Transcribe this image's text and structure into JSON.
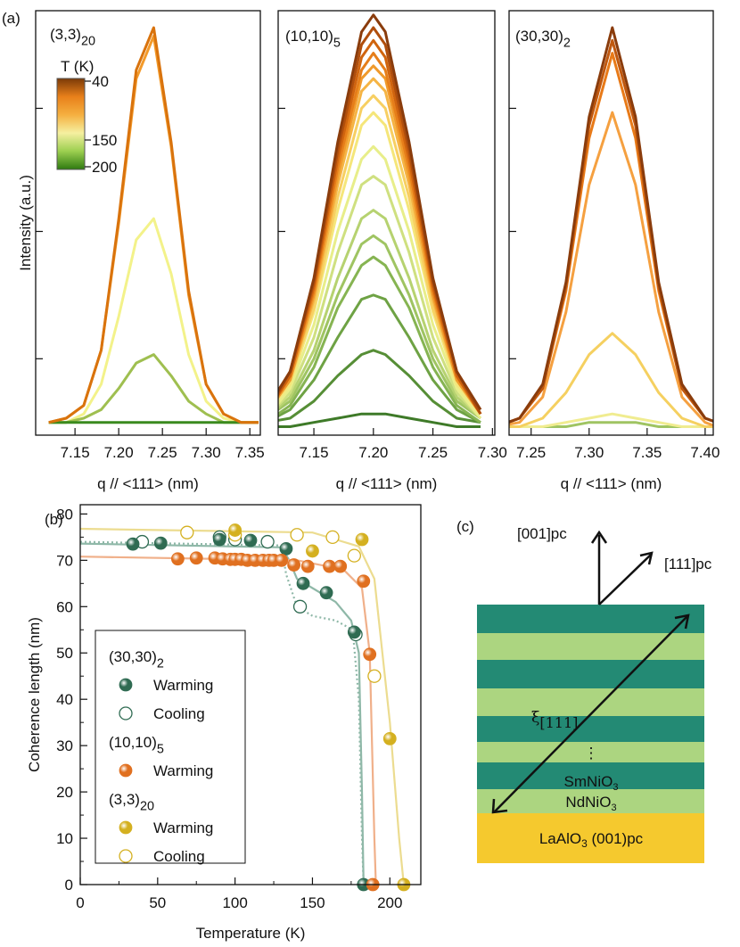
{
  "panel_labels": [
    "(a)",
    "(b)",
    "(c)"
  ],
  "chart_data": [
    {
      "type": "line",
      "label": {
        "text": "(3,3)",
        "sub": "20"
      },
      "ylabel": "Intensity (a.u.)",
      "xlabel": "q // <111> (nm)",
      "x": [
        7.12,
        7.14,
        7.16,
        7.18,
        7.2,
        7.22,
        7.24,
        7.26,
        7.28,
        7.3,
        7.32,
        7.34,
        7.36
      ],
      "xlim": [
        7.105,
        7.362
      ],
      "xticks": [
        7.15,
        {
          "value": 7.2,
          "label": "7.20"
        },
        7.25,
        {
          "value": 7.3,
          "label": "7.30"
        },
        7.35
      ],
      "ylim": [
        0,
        100
      ],
      "yticks": [
        18,
        48,
        77
      ],
      "series": [
        {
          "color": "#f3f28a",
          "values": [
            3,
            3,
            5,
            12,
            28,
            46,
            51,
            38,
            19,
            8,
            4,
            3,
            3
          ]
        },
        {
          "color": "#9fbf50",
          "values": [
            3,
            3,
            4,
            6,
            11,
            17,
            19,
            14,
            8,
            5,
            3,
            3,
            3
          ]
        },
        {
          "color": "#3a8a1e",
          "values": [
            3,
            3,
            3,
            3,
            3,
            3,
            3,
            3,
            3,
            3,
            3,
            3,
            3
          ]
        },
        {
          "color": "#f39a2a",
          "values": [
            3,
            4,
            7,
            20,
            50,
            84,
            94,
            68,
            33,
            12,
            5,
            3,
            3
          ]
        },
        {
          "color": "#d9730d",
          "values": [
            3,
            4,
            7,
            20,
            51,
            86,
            96,
            69,
            34,
            12,
            5,
            3,
            3
          ]
        }
      ],
      "colorbar": {
        "title": "T (K)",
        "lim": [
          35,
          205
        ],
        "ticks": [
          40,
          150,
          200
        ],
        "colors": [
          "#7a3a08",
          "#e8801a",
          "#f5b040",
          "#f5f0a0",
          "#9ccf50",
          "#2e7a10"
        ]
      }
    },
    {
      "type": "line",
      "label": {
        "text": "(10,10)",
        "sub": "5"
      },
      "xlabel": "q // <111> (nm)",
      "x": [
        7.11,
        7.13,
        7.15,
        7.17,
        7.19,
        7.2,
        7.21,
        7.23,
        7.25,
        7.27,
        7.29
      ],
      "xlim": [
        7.12,
        7.302
      ],
      "xticks": [
        7.15,
        {
          "value": 7.2,
          "label": "7.20"
        },
        7.25,
        {
          "value": 7.3,
          "label": "7.30"
        }
      ],
      "ylim": [
        0,
        100
      ],
      "yticks": [
        18,
        48,
        77
      ],
      "series": [
        {
          "color": "#3e7a28",
          "values": [
            2,
            2,
            3,
            4,
            5,
            5,
            5,
            4,
            3,
            2,
            2
          ]
        },
        {
          "color": "#568e36",
          "values": [
            3,
            4,
            8,
            14,
            19,
            20,
            19,
            14,
            8,
            4,
            3
          ]
        },
        {
          "color": "#6ea244",
          "values": [
            3,
            6,
            13,
            23,
            32,
            33,
            32,
            23,
            13,
            6,
            3
          ]
        },
        {
          "color": "#86b452",
          "values": [
            3,
            7,
            16,
            30,
            40,
            42,
            40,
            30,
            16,
            7,
            3
          ]
        },
        {
          "color": "#9fc462",
          "values": [
            4,
            8,
            18,
            33,
            45,
            47,
            45,
            33,
            18,
            8,
            4
          ]
        },
        {
          "color": "#b6d270",
          "values": [
            4,
            9,
            20,
            37,
            51,
            53,
            51,
            37,
            20,
            9,
            4
          ]
        },
        {
          "color": "#cfe080",
          "values": [
            4,
            10,
            23,
            43,
            59,
            61,
            59,
            43,
            23,
            10,
            4
          ]
        },
        {
          "color": "#e8ee8a",
          "values": [
            4,
            11,
            26,
            48,
            65,
            68,
            65,
            48,
            26,
            11,
            4
          ]
        },
        {
          "color": "#f5e67a",
          "values": [
            5,
            12,
            29,
            53,
            73,
            76,
            73,
            53,
            29,
            12,
            5
          ]
        },
        {
          "color": "#f7cf62",
          "values": [
            5,
            13,
            30,
            56,
            77,
            80,
            77,
            56,
            30,
            13,
            5
          ]
        },
        {
          "color": "#f5b444",
          "values": [
            5,
            13,
            32,
            59,
            81,
            84,
            81,
            59,
            32,
            13,
            5
          ]
        },
        {
          "color": "#f09a2c",
          "values": [
            5,
            13,
            33,
            61,
            84,
            87,
            84,
            61,
            33,
            13,
            5
          ]
        },
        {
          "color": "#e67e1a",
          "values": [
            5,
            14,
            34,
            63,
            86,
            90,
            86,
            63,
            34,
            14,
            5
          ]
        },
        {
          "color": "#d0640e",
          "values": [
            5,
            14,
            35,
            65,
            89,
            93,
            89,
            65,
            35,
            14,
            5
          ]
        },
        {
          "color": "#b04e0c",
          "values": [
            5,
            15,
            36,
            67,
            92,
            96,
            92,
            67,
            36,
            15,
            5
          ]
        },
        {
          "color": "#8a3c0c",
          "values": [
            6,
            15,
            37,
            69,
            95,
            99,
            95,
            69,
            37,
            15,
            6
          ]
        }
      ]
    },
    {
      "type": "line",
      "label": {
        "text": "(30,30)",
        "sub": "2"
      },
      "xlabel": "q // <111> (nm)",
      "x": [
        7.22,
        7.24,
        7.26,
        7.28,
        7.3,
        7.32,
        7.34,
        7.36,
        7.38,
        7.4,
        7.41
      ],
      "xlim": [
        7.231,
        7.407
      ],
      "xticks": [
        7.25,
        {
          "value": 7.3,
          "label": "7.30"
        },
        7.35,
        {
          "value": 7.4,
          "label": "7.40"
        }
      ],
      "ylim": [
        0,
        100
      ],
      "yticks": [
        18,
        48,
        77
      ],
      "series": [
        {
          "color": "#9fc462",
          "values": [
            2,
            2,
            2,
            2,
            3,
            3,
            3,
            2,
            2,
            2,
            2
          ]
        },
        {
          "color": "#f0ec90",
          "values": [
            2,
            2,
            2,
            3,
            4,
            5,
            4,
            3,
            2,
            2,
            2
          ]
        },
        {
          "color": "#f5d060",
          "values": [
            2,
            2,
            4,
            10,
            19,
            24,
            19,
            10,
            4,
            2,
            2
          ]
        },
        {
          "color": "#f5a040",
          "values": [
            2,
            3,
            9,
            29,
            59,
            76,
            59,
            29,
            9,
            3,
            2
          ]
        },
        {
          "color": "#e87a18",
          "values": [
            2,
            4,
            11,
            34,
            70,
            90,
            70,
            34,
            11,
            4,
            3
          ]
        },
        {
          "color": "#c0580e",
          "values": [
            2,
            4,
            11,
            35,
            73,
            93,
            73,
            35,
            11,
            4,
            3
          ]
        },
        {
          "color": "#8a3c0c",
          "values": [
            2,
            4,
            12,
            36,
            75,
            96,
            75,
            36,
            12,
            4,
            3
          ]
        }
      ]
    },
    {
      "type": "scatter",
      "xlabel": "Temperature (K)",
      "ylabel": "Coherence length (nm)",
      "xlim": [
        0,
        220
      ],
      "xticks": [
        0,
        50,
        100,
        150,
        200
      ],
      "xminor": [
        25,
        75,
        125,
        175
      ],
      "ylim": [
        0,
        82
      ],
      "yticks": [
        0,
        10,
        20,
        30,
        40,
        50,
        60,
        70,
        80
      ],
      "yminor": [
        5,
        15,
        25,
        35,
        45,
        55,
        65,
        75
      ],
      "groups": [
        {
          "text": "(30,30)",
          "sub": "2"
        },
        {
          "text": "(10,10)",
          "sub": "5"
        },
        {
          "text": "(3,3)",
          "sub": "20"
        }
      ],
      "fits": [
        {
          "color": "#8fb8a8",
          "dash": false,
          "x": [
            0,
            130,
            135,
            140,
            150,
            165,
            175,
            180,
            182,
            183
          ],
          "values": [
            73.6,
            72.8,
            70,
            66,
            64,
            61,
            57,
            50,
            20,
            0
          ]
        },
        {
          "color": "#8fb8a8",
          "dash": true,
          "x": [
            0,
            130,
            133,
            140,
            150,
            165,
            176,
            180,
            182,
            183
          ],
          "values": [
            74,
            73.2,
            67,
            60,
            58,
            57,
            55,
            40,
            10,
            0
          ]
        },
        {
          "color": "#f0b08a",
          "dash": false,
          "x": [
            0,
            140,
            170,
            182,
            187,
            190,
            191
          ],
          "values": [
            70.8,
            70,
            68,
            64,
            50,
            10,
            0
          ]
        },
        {
          "color": "#ecdc90",
          "dash": false,
          "x": [
            0,
            150,
            180,
            190,
            200,
            206,
            209
          ],
          "values": [
            76.8,
            76,
            73,
            66,
            35,
            10,
            0
          ]
        }
      ],
      "series": [
        {
          "name": "Warming",
          "group": 0,
          "color": "#2f6b52",
          "filled": true,
          "x": [
            34,
            52,
            90,
            110,
            133,
            144,
            159,
            177,
            183
          ],
          "values": [
            73.5,
            73.7,
            74.5,
            74.3,
            72.5,
            65,
            63,
            54.5,
            0
          ]
        },
        {
          "name": "Cooling",
          "group": 0,
          "color": "#2f6b52",
          "filled": false,
          "x": [
            40,
            90,
            100,
            121,
            142,
            178
          ],
          "values": [
            74,
            75,
            74.5,
            74,
            60,
            54
          ]
        },
        {
          "name": "Warming",
          "group": 1,
          "color": "#e07020",
          "filled": true,
          "x": [
            63,
            75,
            87,
            92,
            97,
            100,
            104,
            108,
            113,
            118,
            122,
            125,
            130,
            138,
            147,
            161,
            168,
            183,
            187,
            189
          ],
          "values": [
            70.3,
            70.5,
            70.5,
            70.3,
            70.2,
            70.2,
            70.2,
            70,
            70,
            70,
            70,
            70,
            70,
            69,
            68.7,
            68.7,
            68.7,
            65.5,
            49.7,
            0
          ]
        },
        {
          "name": "Warming",
          "group": 2,
          "color": "#d4b020",
          "filled": true,
          "x": [
            100,
            150,
            182,
            200,
            209
          ],
          "values": [
            76.5,
            72,
            74.5,
            31.5,
            0
          ]
        },
        {
          "name": "Cooling",
          "group": 2,
          "color": "#d4b020",
          "filled": false,
          "x": [
            69,
            100,
            140,
            163,
            177,
            190
          ],
          "values": [
            76,
            75.5,
            75.5,
            75,
            71,
            45
          ]
        }
      ]
    }
  ],
  "diagram": {
    "axes": [
      "[001]pc",
      "[111]pc"
    ],
    "xi": {
      "text": "ξ",
      "sub": "[111]"
    },
    "dots": "⋮",
    "layers": [
      {
        "text": "SmNiO",
        "sub": "3"
      },
      {
        "text": "NdNiO",
        "sub": "3"
      },
      {
        "text": "LaAlO",
        "sub": "3",
        "after": " (001)pc"
      }
    ]
  }
}
